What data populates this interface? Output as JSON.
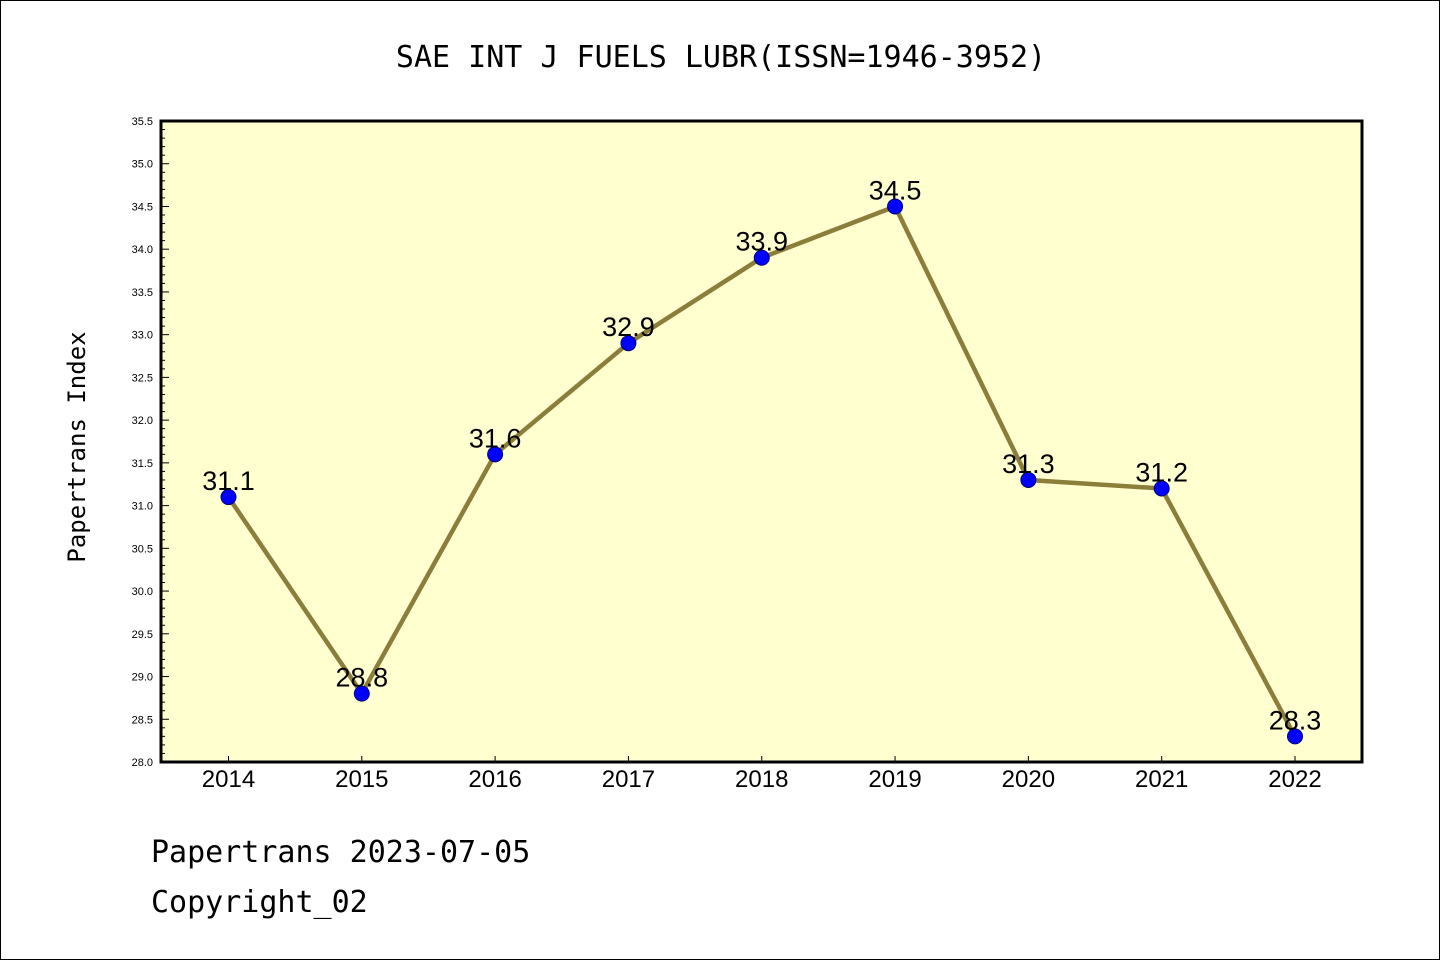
{
  "chart_data": {
    "type": "line",
    "title": "SAE INT J FUELS LUBR(ISSN=1946-3952)",
    "xlabel": "",
    "ylabel": "Papertrans Index",
    "x": [
      "2014",
      "2015",
      "2016",
      "2017",
      "2018",
      "2019",
      "2020",
      "2021",
      "2022"
    ],
    "series": [
      {
        "values": [
          31.1,
          28.8,
          31.6,
          32.9,
          33.9,
          34.5,
          31.3,
          31.2,
          28.3
        ],
        "data_labels": [
          "31.1",
          "28.8",
          "31.6",
          "32.9",
          "33.9",
          "34.5",
          "31.3",
          "31.2",
          "28.3"
        ]
      }
    ],
    "ylim": [
      28.0,
      35.5
    ],
    "yticks": [
      "28.0",
      "28.5",
      "29.0",
      "29.5",
      "30.0",
      "30.5",
      "31.0",
      "31.5",
      "32.0",
      "32.5",
      "33.0",
      "33.5",
      "34.0",
      "34.5",
      "35.0",
      "35.5"
    ],
    "grid": false,
    "colors": {
      "plot_background": "#ffffd0",
      "line": "#8b7d3a",
      "marker": "#0000ff"
    }
  },
  "footer": {
    "date_line": "Papertrans 2023-07-05",
    "copyright": "Copyright_02"
  }
}
